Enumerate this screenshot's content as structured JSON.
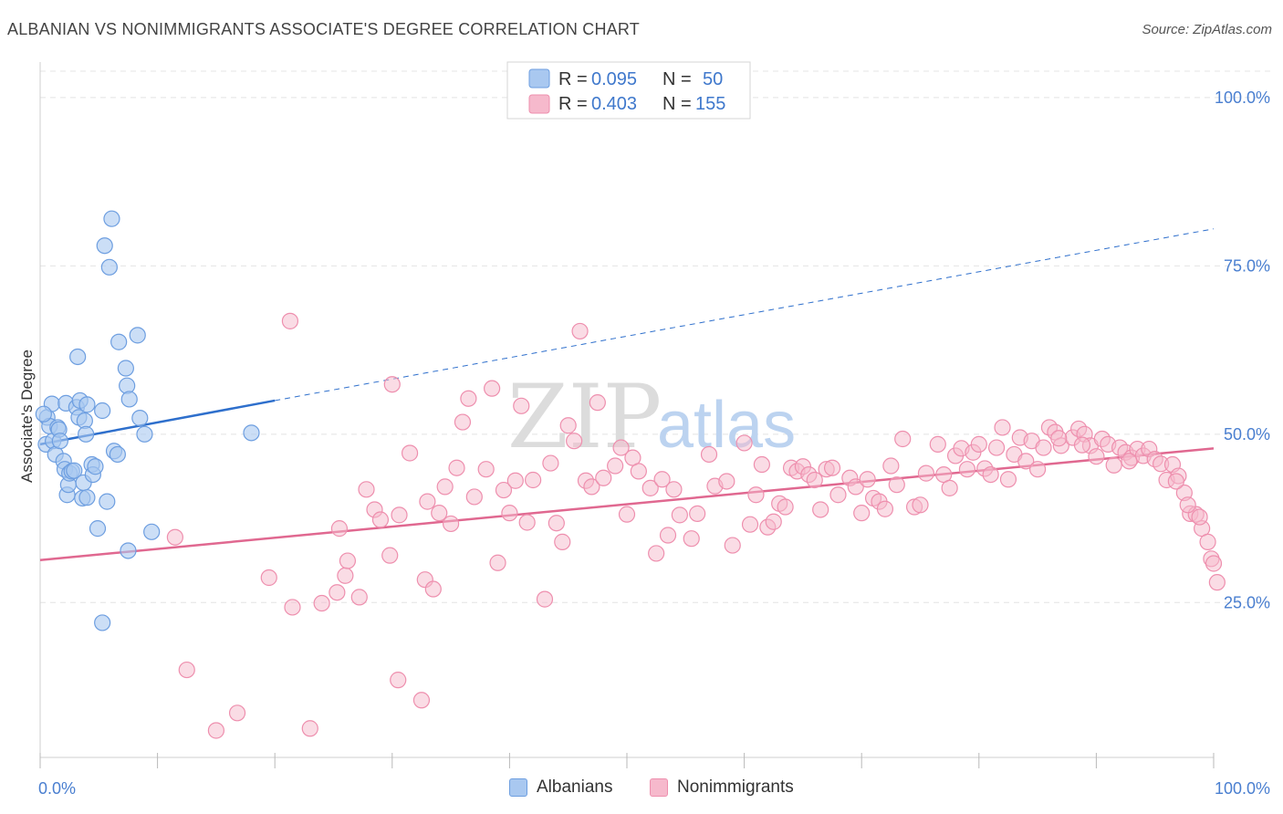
{
  "title": "ALBANIAN VS NONIMMIGRANTS ASSOCIATE'S DEGREE CORRELATION CHART",
  "source": "Source: ZipAtlas.com",
  "watermark": {
    "zip": "ZIP",
    "atlas": "atlas"
  },
  "colors": {
    "albanian_fill": "#a9c8f0",
    "albanian_stroke": "#6d9ee0",
    "albanian_line": "#2e6fcc",
    "nonimm_fill": "#f6b9cc",
    "nonimm_stroke": "#ee8fae",
    "nonimm_line": "#e06890",
    "tick_text": "#4a7fd0",
    "grid": "#e4e4e4"
  },
  "legend_box": {
    "albanian": {
      "r_label": "R = ",
      "r_value": "0.095",
      "n_label": "N = ",
      "n_value": "50"
    },
    "nonimm": {
      "r_label": "R = ",
      "r_value": "0.403",
      "n_label": "N = ",
      "n_value": "155"
    }
  },
  "bottom_legend": {
    "albanian": "Albanians",
    "nonimm": "Nonimmigrants"
  },
  "chart_data": {
    "type": "scatter",
    "title": "ALBANIAN VS NONIMMIGRANTS ASSOCIATE'S DEGREE CORRELATION CHART",
    "xlabel": "",
    "ylabel": "Associate's Degree",
    "xlim": [
      0,
      100
    ],
    "ylim": [
      2,
      105
    ],
    "x_ticks": [
      "0.0%",
      "100.0%"
    ],
    "y_ticks": [
      {
        "value": 25,
        "label": "25.0%"
      },
      {
        "value": 50,
        "label": "50.0%"
      },
      {
        "value": 75,
        "label": "75.0%"
      },
      {
        "value": 100,
        "label": "100.0%"
      }
    ],
    "grid": true,
    "legend_position": "top-center",
    "series": [
      {
        "name": "Albanians",
        "r": 0.095,
        "n": 50,
        "trend": {
          "x0": 0,
          "y0": 48.5,
          "x1": 20,
          "y1": 55,
          "dash_to_x": 100,
          "dash_to_y": 80.5
        },
        "points": [
          [
            0.5,
            48.5
          ],
          [
            0.6,
            52.5
          ],
          [
            0.8,
            51.2
          ],
          [
            1.0,
            54.5
          ],
          [
            1.1,
            49.0
          ],
          [
            1.3,
            47.0
          ],
          [
            1.5,
            51.0
          ],
          [
            1.6,
            50.7
          ],
          [
            1.7,
            49.0
          ],
          [
            2.0,
            46.0
          ],
          [
            2.1,
            44.8
          ],
          [
            2.2,
            54.6
          ],
          [
            2.3,
            41.0
          ],
          [
            2.4,
            42.5
          ],
          [
            2.5,
            44.2
          ],
          [
            2.7,
            44.5
          ],
          [
            2.9,
            44.6
          ],
          [
            3.1,
            54.0
          ],
          [
            3.2,
            61.5
          ],
          [
            3.3,
            52.5
          ],
          [
            3.4,
            55.0
          ],
          [
            3.6,
            40.5
          ],
          [
            3.7,
            42.8
          ],
          [
            3.8,
            52.0
          ],
          [
            3.9,
            50.0
          ],
          [
            4.0,
            40.6
          ],
          [
            4.4,
            45.5
          ],
          [
            4.5,
            44.0
          ],
          [
            4.7,
            45.2
          ],
          [
            4.9,
            36.0
          ],
          [
            5.3,
            53.5
          ],
          [
            5.5,
            78.0
          ],
          [
            5.7,
            40.0
          ],
          [
            5.9,
            74.8
          ],
          [
            6.1,
            82.0
          ],
          [
            6.3,
            47.5
          ],
          [
            6.6,
            47.0
          ],
          [
            6.7,
            63.7
          ],
          [
            7.3,
            59.8
          ],
          [
            7.4,
            57.2
          ],
          [
            7.5,
            32.7
          ],
          [
            7.6,
            55.2
          ],
          [
            8.3,
            64.7
          ],
          [
            8.5,
            52.4
          ],
          [
            8.9,
            50.0
          ],
          [
            9.5,
            35.5
          ],
          [
            18.0,
            50.2
          ],
          [
            5.3,
            22.0
          ],
          [
            0.3,
            53.0
          ],
          [
            4.0,
            54.4
          ]
        ]
      },
      {
        "name": "Nonimmigrants",
        "r": 0.403,
        "n": 155,
        "trend": {
          "x0": 0,
          "y0": 31.3,
          "x1": 100,
          "y1": 47.9
        },
        "points": [
          [
            11.5,
            34.7
          ],
          [
            12.5,
            15.0
          ],
          [
            15.0,
            6.0
          ],
          [
            16.8,
            8.6
          ],
          [
            19.5,
            28.7
          ],
          [
            21.3,
            66.8
          ],
          [
            21.5,
            24.3
          ],
          [
            23.0,
            6.3
          ],
          [
            24.0,
            24.9
          ],
          [
            25.3,
            26.5
          ],
          [
            25.5,
            36.0
          ],
          [
            26.0,
            29.0
          ],
          [
            26.2,
            31.2
          ],
          [
            27.2,
            25.8
          ],
          [
            27.8,
            41.8
          ],
          [
            28.5,
            38.8
          ],
          [
            29.0,
            37.3
          ],
          [
            29.8,
            32.0
          ],
          [
            30.0,
            57.4
          ],
          [
            30.5,
            13.5
          ],
          [
            30.6,
            38.0
          ],
          [
            31.5,
            47.2
          ],
          [
            32.5,
            10.5
          ],
          [
            32.8,
            28.4
          ],
          [
            33.0,
            40.0
          ],
          [
            33.5,
            27.0
          ],
          [
            34.0,
            38.3
          ],
          [
            34.5,
            42.2
          ],
          [
            35.0,
            36.7
          ],
          [
            35.5,
            45.0
          ],
          [
            36.0,
            51.8
          ],
          [
            36.5,
            55.3
          ],
          [
            37.0,
            40.7
          ],
          [
            38.0,
            44.8
          ],
          [
            38.5,
            56.8
          ],
          [
            39.0,
            30.9
          ],
          [
            39.5,
            41.7
          ],
          [
            40.0,
            38.3
          ],
          [
            40.5,
            43.1
          ],
          [
            41.0,
            54.2
          ],
          [
            41.5,
            36.9
          ],
          [
            42.0,
            43.2
          ],
          [
            43.0,
            25.5
          ],
          [
            43.5,
            45.7
          ],
          [
            44.0,
            36.8
          ],
          [
            44.5,
            34.0
          ],
          [
            45.0,
            51.3
          ],
          [
            45.5,
            49.0
          ],
          [
            46.0,
            65.3
          ],
          [
            46.5,
            43.1
          ],
          [
            47.0,
            42.2
          ],
          [
            47.5,
            54.7
          ],
          [
            48.0,
            43.5
          ],
          [
            49.0,
            45.3
          ],
          [
            49.5,
            48.0
          ],
          [
            50.0,
            38.1
          ],
          [
            50.5,
            46.5
          ],
          [
            51.0,
            44.5
          ],
          [
            52.0,
            42.0
          ],
          [
            52.5,
            32.3
          ],
          [
            53.0,
            43.3
          ],
          [
            53.5,
            35.0
          ],
          [
            54.0,
            41.8
          ],
          [
            54.5,
            38.0
          ],
          [
            55.5,
            34.5
          ],
          [
            56.0,
            38.2
          ],
          [
            57.0,
            47.0
          ],
          [
            57.5,
            42.3
          ],
          [
            58.5,
            43.0
          ],
          [
            59.0,
            33.5
          ],
          [
            60.0,
            48.7
          ],
          [
            60.5,
            36.6
          ],
          [
            61.0,
            41.0
          ],
          [
            61.5,
            45.5
          ],
          [
            62.0,
            36.2
          ],
          [
            62.5,
            37.0
          ],
          [
            63.0,
            39.7
          ],
          [
            63.5,
            39.2
          ],
          [
            64.0,
            45.0
          ],
          [
            64.5,
            44.5
          ],
          [
            65.0,
            45.2
          ],
          [
            65.5,
            44.0
          ],
          [
            66.0,
            43.2
          ],
          [
            66.5,
            38.8
          ],
          [
            67.0,
            44.8
          ],
          [
            67.5,
            45.0
          ],
          [
            68.0,
            41.0
          ],
          [
            69.0,
            43.5
          ],
          [
            69.5,
            42.2
          ],
          [
            70.0,
            38.3
          ],
          [
            70.5,
            43.3
          ],
          [
            71.0,
            40.5
          ],
          [
            71.5,
            40.0
          ],
          [
            72.0,
            38.9
          ],
          [
            72.5,
            45.3
          ],
          [
            73.0,
            42.5
          ],
          [
            73.5,
            49.3
          ],
          [
            74.5,
            39.2
          ],
          [
            75.0,
            39.5
          ],
          [
            75.5,
            44.2
          ],
          [
            76.5,
            48.5
          ],
          [
            77.0,
            44.0
          ],
          [
            77.5,
            42.0
          ],
          [
            78.0,
            46.8
          ],
          [
            78.5,
            47.9
          ],
          [
            79.0,
            44.8
          ],
          [
            79.5,
            47.3
          ],
          [
            80.0,
            48.5
          ],
          [
            80.5,
            44.9
          ],
          [
            81.0,
            44.0
          ],
          [
            81.5,
            48.0
          ],
          [
            82.0,
            51.0
          ],
          [
            82.5,
            43.3
          ],
          [
            83.0,
            47.0
          ],
          [
            83.5,
            49.5
          ],
          [
            84.0,
            46.0
          ],
          [
            84.5,
            49.0
          ],
          [
            85.0,
            44.8
          ],
          [
            85.5,
            48.0
          ],
          [
            86.0,
            51.0
          ],
          [
            86.5,
            50.3
          ],
          [
            87.0,
            48.3
          ],
          [
            88.0,
            49.5
          ],
          [
            88.5,
            50.8
          ],
          [
            89.0,
            50.0
          ],
          [
            89.5,
            48.3
          ],
          [
            90.0,
            46.7
          ],
          [
            90.5,
            49.3
          ],
          [
            91.0,
            48.5
          ],
          [
            91.5,
            45.4
          ],
          [
            92.0,
            48.0
          ],
          [
            92.5,
            47.3
          ],
          [
            93.0,
            46.5
          ],
          [
            93.5,
            47.8
          ],
          [
            94.0,
            46.8
          ],
          [
            94.5,
            47.8
          ],
          [
            95.0,
            46.3
          ],
          [
            95.5,
            45.6
          ],
          [
            96.0,
            43.2
          ],
          [
            96.5,
            45.5
          ],
          [
            97.0,
            43.8
          ],
          [
            97.5,
            41.3
          ],
          [
            98.0,
            38.2
          ],
          [
            98.5,
            38.1
          ],
          [
            99.0,
            36.0
          ],
          [
            99.5,
            34.0
          ],
          [
            99.8,
            31.5
          ],
          [
            100.0,
            30.8
          ],
          [
            100.3,
            28.0
          ],
          [
            96.8,
            43.0
          ],
          [
            97.8,
            39.5
          ],
          [
            98.8,
            37.7
          ],
          [
            92.8,
            46.0
          ],
          [
            88.8,
            48.4
          ],
          [
            86.8,
            49.4
          ]
        ]
      }
    ]
  }
}
